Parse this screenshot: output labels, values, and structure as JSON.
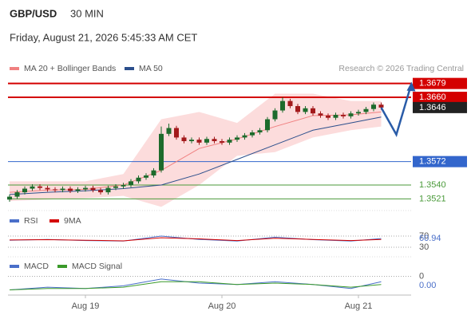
{
  "chart_data": {
    "type": "candlestick",
    "title": "GBP/USD",
    "subtitle": "30 MIN",
    "timestamp": "Friday, August 21, 2026 5:45:33 AM CET",
    "credit": "Research © 2026 Trading Central",
    "up_color": "#1d6b2c",
    "down_color": "#a3191b",
    "xticks": [
      {
        "value": 10,
        "label": "Aug 19"
      },
      {
        "value": 28,
        "label": "Aug 20"
      },
      {
        "value": 46,
        "label": "Aug 21"
      }
    ],
    "ylim": [
      1.3505,
      1.3695
    ],
    "open": [
      1.352,
      1.3524,
      1.353,
      1.3535,
      1.3538,
      1.3536,
      1.3534,
      1.3533,
      1.3535,
      1.3532,
      1.3534,
      1.3536,
      1.3533,
      1.353,
      1.3536,
      1.3538,
      1.354,
      1.3545,
      1.355,
      1.3553,
      1.356,
      1.361,
      1.3618,
      1.3605,
      1.36,
      1.3602,
      1.3598,
      1.3603,
      1.36,
      1.3598,
      1.3602,
      1.3605,
      1.3608,
      1.3612,
      1.3615,
      1.363,
      1.3642,
      1.3655,
      1.3648,
      1.364,
      1.3645,
      1.3638,
      1.3635,
      1.3632,
      1.3636,
      1.3634,
      1.3638,
      1.364,
      1.3644,
      1.365
    ],
    "high": [
      1.3527,
      1.3533,
      1.3538,
      1.3541,
      1.3541,
      1.3539,
      1.3537,
      1.3538,
      1.3538,
      1.3537,
      1.3539,
      1.3539,
      1.3536,
      1.3539,
      1.3541,
      1.3543,
      1.3548,
      1.3553,
      1.3556,
      1.3563,
      1.362,
      1.3624,
      1.3621,
      1.3608,
      1.3605,
      1.3605,
      1.3606,
      1.3606,
      1.3603,
      1.3605,
      1.3608,
      1.3611,
      1.3615,
      1.3618,
      1.3633,
      1.3645,
      1.366,
      1.3658,
      1.3651,
      1.3648,
      1.3648,
      1.3641,
      1.3638,
      1.3639,
      1.3639,
      1.3641,
      1.3643,
      1.3647,
      1.3653,
      1.3653
    ],
    "low": [
      1.3517,
      1.3521,
      1.3527,
      1.3532,
      1.3533,
      1.3531,
      1.353,
      1.353,
      1.3529,
      1.3529,
      1.3531,
      1.353,
      1.3527,
      1.3527,
      1.3533,
      1.3535,
      1.3537,
      1.3542,
      1.3547,
      1.355,
      1.3557,
      1.3607,
      1.3602,
      1.3597,
      1.3597,
      1.3595,
      1.3595,
      1.3597,
      1.3595,
      1.3595,
      1.3599,
      1.3602,
      1.3605,
      1.3609,
      1.3612,
      1.3627,
      1.3639,
      1.3645,
      1.3637,
      1.3637,
      1.3635,
      1.3632,
      1.3629,
      1.3629,
      1.3631,
      1.3631,
      1.3635,
      1.3637,
      1.3641,
      1.3643
    ],
    "close": [
      1.3524,
      1.353,
      1.3535,
      1.3538,
      1.3536,
      1.3534,
      1.3533,
      1.3535,
      1.3532,
      1.3534,
      1.3536,
      1.3533,
      1.353,
      1.3536,
      1.3538,
      1.354,
      1.3545,
      1.355,
      1.3553,
      1.356,
      1.361,
      1.3618,
      1.3605,
      1.36,
      1.3602,
      1.3598,
      1.3603,
      1.36,
      1.3598,
      1.3602,
      1.3605,
      1.3608,
      1.3612,
      1.3615,
      1.363,
      1.3642,
      1.3655,
      1.3648,
      1.364,
      1.3645,
      1.3638,
      1.3635,
      1.3632,
      1.3636,
      1.3634,
      1.3638,
      1.364,
      1.3644,
      1.365,
      1.3646
    ],
    "overlay_x": [
      0,
      5,
      10,
      15,
      20,
      25,
      30,
      35,
      40,
      45,
      49
    ],
    "bands": {
      "name": "MA 20 + Bollinger Bands",
      "color": "#f08080",
      "fill": "#fcdcdc",
      "upper": [
        1.3545,
        1.3545,
        1.3545,
        1.3555,
        1.363,
        1.364,
        1.3625,
        1.3665,
        1.3665,
        1.3655,
        1.3655
      ],
      "lower": [
        1.3518,
        1.352,
        1.3522,
        1.3525,
        1.351,
        1.354,
        1.358,
        1.3585,
        1.3605,
        1.3615,
        1.362
      ],
      "values": [
        1.353,
        1.3533,
        1.3534,
        1.354,
        1.356,
        1.359,
        1.3603,
        1.362,
        1.3635,
        1.3636,
        1.364
      ]
    },
    "ma50": {
      "name": "MA 50",
      "color": "#2c4f8c",
      "values": [
        1.3527,
        1.353,
        1.3532,
        1.3535,
        1.354,
        1.3555,
        1.3575,
        1.3595,
        1.3615,
        1.3625,
        1.3633
      ]
    },
    "projection": {
      "color": "#2a5ca8",
      "x": [
        49,
        51,
        53
      ],
      "values": [
        1.3646,
        1.3609,
        1.3679
      ]
    },
    "levels": [
      {
        "value": 1.3679,
        "label": "1.3679",
        "color": "#d40000",
        "line": true,
        "box": true
      },
      {
        "value": 1.366,
        "label": "1.3660",
        "color": "#d40000",
        "line": true,
        "box": true
      },
      {
        "value": 1.3646,
        "label": "1.3646",
        "color": "#222222",
        "line": false,
        "box": true
      },
      {
        "value": 1.3572,
        "label": "1.3572",
        "color": "#3366cc",
        "line": true,
        "box": true
      },
      {
        "value": 1.354,
        "label": "1.3540",
        "color": "#4a9a3a",
        "line": true,
        "box": false
      },
      {
        "value": 1.3521,
        "label": "1.3521",
        "color": "#4a9a3a",
        "line": true,
        "box": false
      }
    ],
    "rsi": {
      "ylim": [
        0,
        100
      ],
      "yticks": [
        30,
        70
      ],
      "series": [
        {
          "name": "RSI",
          "color": "#4a6fc9",
          "values": [
            55,
            58,
            54,
            52,
            70,
            58,
            52,
            66,
            57,
            52,
            60.94
          ]
        },
        {
          "name": "9MA",
          "color": "#d40000",
          "values": [
            56,
            57,
            55,
            53,
            64,
            60,
            54,
            62,
            58,
            54,
            58
          ]
        }
      ]
    },
    "macd": {
      "ylim": [
        -0.0015,
        0.0005
      ],
      "yticks": [
        0
      ],
      "last_label": "0.00",
      "series": [
        {
          "name": "MACD",
          "color": "#4a6fc9",
          "values": [
            -0.001,
            -0.0008,
            -0.0009,
            -0.0007,
            -0.0002,
            -0.0005,
            -0.0006,
            -0.0004,
            -0.0006,
            -0.0009,
            -0.0004
          ]
        },
        {
          "name": "MACD Signal",
          "color": "#3a9a2a",
          "values": [
            -0.001,
            -0.0009,
            -0.0009,
            -0.0008,
            -0.0004,
            -0.0004,
            -0.0006,
            -0.0005,
            -0.0006,
            -0.0008,
            -0.0006
          ]
        }
      ]
    }
  }
}
